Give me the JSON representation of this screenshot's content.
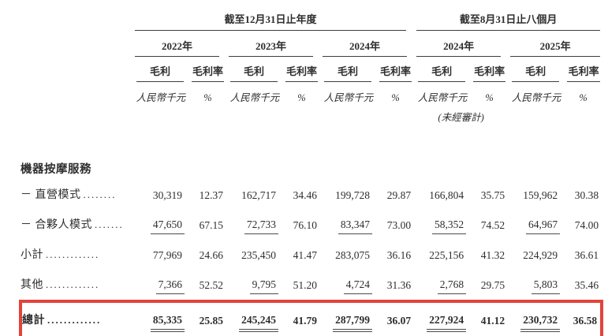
{
  "colors": {
    "text": "#2e2e2e",
    "rule": "#3d3d3d",
    "highlight_box": "#e2443a"
  },
  "table": {
    "sections": [
      {
        "title": "截至12月31日止年度"
      },
      {
        "title": "截至8月31日止八個月"
      }
    ],
    "years": [
      "2022年",
      "2023年",
      "2024年",
      "2024年",
      "2025年"
    ],
    "col_headers": {
      "gross_profit": "毛利",
      "gross_margin": "毛利率"
    },
    "units": {
      "currency": "人民幣千元",
      "percent": "%"
    },
    "unaudited_note": "(未經審計)",
    "category_header": "機器按摩服務",
    "rows": [
      {
        "label": "－ 直營模式",
        "dots": "........",
        "values": [
          "30,319",
          "12.37",
          "162,717",
          "34.46",
          "199,728",
          "29.87",
          "166,804",
          "35.75",
          "159,962",
          "30.38"
        ]
      },
      {
        "label": "－ 合夥人模式",
        "dots": ".......",
        "values": [
          "47,650",
          "67.15",
          "72,733",
          "76.10",
          "83,347",
          "73.00",
          "58,352",
          "74.52",
          "64,967",
          "74.00"
        ]
      },
      {
        "label": "小計",
        "dots": ".............",
        "values": [
          "77,969",
          "24.66",
          "235,450",
          "41.47",
          "283,075",
          "36.16",
          "225,156",
          "41.32",
          "224,929",
          "36.61"
        ]
      },
      {
        "label": "其他",
        "dots": ".............",
        "values": [
          "7,366",
          "52.52",
          "9,795",
          "51.20",
          "4,724",
          "31.36",
          "2,768",
          "29.75",
          "5,803",
          "35.46"
        ]
      },
      {
        "label": "總計",
        "dots": ".............",
        "values": [
          "85,335",
          "25.85",
          "245,245",
          "41.79",
          "287,799",
          "36.07",
          "227,924",
          "41.12",
          "230,732",
          "36.58"
        ]
      }
    ]
  }
}
